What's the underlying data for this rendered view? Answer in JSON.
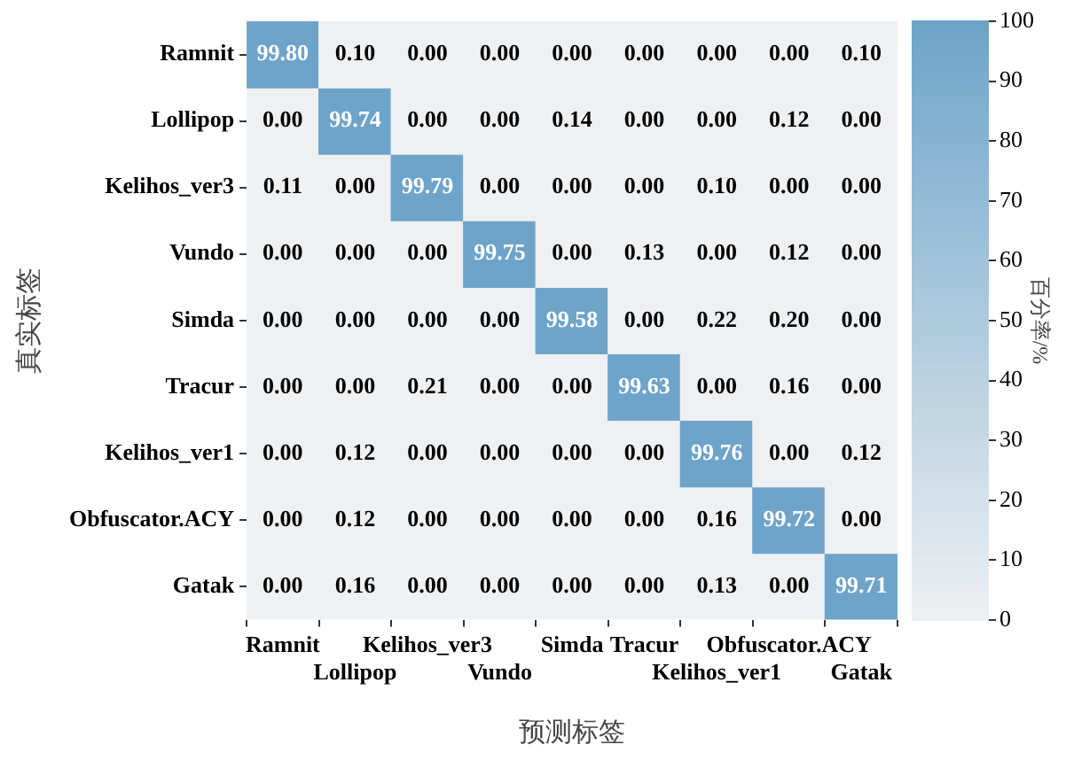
{
  "chart_data": {
    "type": "heatmap",
    "xlabel": "预测标签",
    "ylabel": "真实标签",
    "clabel": "百分率/%",
    "categories": [
      "Ramnit",
      "Lollipop",
      "Kelihos_ver3",
      "Vundo",
      "Simda",
      "Tracur",
      "Kelihos_ver1",
      "Obfuscator.ACY",
      "Gatak"
    ],
    "y_categories": [
      "Ramnit",
      "Lollipop",
      "Kelihos_ver3",
      "Vundo",
      "Simda",
      "Tracur",
      "Kelihos_ver1",
      "Obfuscator.ACY",
      "Gatak"
    ],
    "cells": [
      [
        99.8,
        0.1,
        0,
        0,
        0,
        0,
        0,
        0,
        0.1
      ],
      [
        0,
        99.74,
        0,
        0,
        0.14,
        0,
        0,
        0.12,
        0
      ],
      [
        0.11,
        0,
        99.79,
        0,
        0,
        0,
        0.1,
        0,
        0
      ],
      [
        0,
        0,
        0,
        99.75,
        0,
        0.13,
        0,
        0.12,
        0
      ],
      [
        0,
        0,
        0,
        0,
        99.58,
        0,
        0.22,
        0.2,
        0
      ],
      [
        0,
        0,
        0.21,
        0,
        0,
        99.63,
        0,
        0.16,
        0
      ],
      [
        0,
        0.12,
        0,
        0,
        0,
        0,
        99.76,
        0,
        0.12
      ],
      [
        0,
        0.12,
        0,
        0,
        0,
        0,
        0.16,
        99.72,
        0
      ],
      [
        0,
        0.16,
        0,
        0,
        0,
        0,
        0.13,
        0,
        99.71
      ]
    ],
    "cell_labels": [
      [
        "99.80",
        "0.10",
        "0.00",
        "0.00",
        "0.00",
        "0.00",
        "0.00",
        "0.00",
        "0.10"
      ],
      [
        "0.00",
        "99.74",
        "0.00",
        "0.00",
        "0.14",
        "0.00",
        "0.00",
        "0.12",
        "0.00"
      ],
      [
        "0.11",
        "0.00",
        "99.79",
        "0.00",
        "0.00",
        "0.00",
        "0.10",
        "0.00",
        "0.00"
      ],
      [
        "0.00",
        "0.00",
        "0.00",
        "99.75",
        "0.00",
        "0.13",
        "0.00",
        "0.12",
        "0.00"
      ],
      [
        "0.00",
        "0.00",
        "0.00",
        "0.00",
        "99.58",
        "0.00",
        "0.22",
        "0.20",
        "0.00"
      ],
      [
        "0.00",
        "0.00",
        "0.21",
        "0.00",
        "0.00",
        "99.63",
        "0.00",
        "0.16",
        "0.00"
      ],
      [
        "0.00",
        "0.12",
        "0.00",
        "0.00",
        "0.00",
        "0.00",
        "99.76",
        "0.00",
        "0.12"
      ],
      [
        "0.00",
        "0.12",
        "0.00",
        "0.00",
        "0.00",
        "0.00",
        "0.16",
        "99.72",
        "0.00"
      ],
      [
        "0.00",
        "0.16",
        "0.00",
        "0.00",
        "0.00",
        "0.00",
        "0.13",
        "0.00",
        "99.71"
      ]
    ],
    "clim": [
      0,
      100
    ],
    "cticks": [
      0,
      10,
      20,
      30,
      40,
      50,
      60,
      70,
      80,
      90,
      100
    ]
  }
}
